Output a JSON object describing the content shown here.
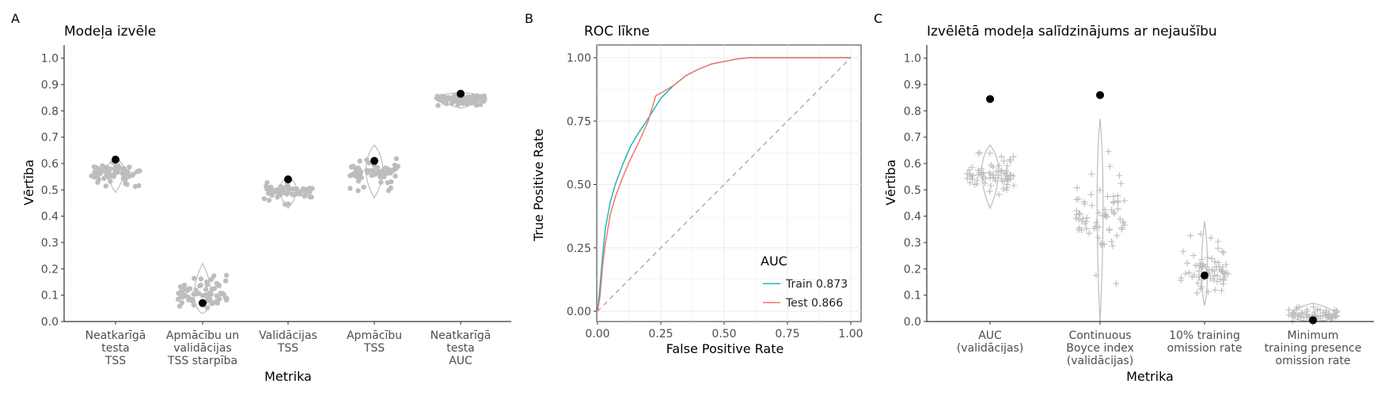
{
  "chart_data": [
    {
      "panel_letter": "A",
      "type": "scatter",
      "title": "Modeļa izvēle",
      "xlabel": "Metrika",
      "ylabel": "Vērtība",
      "ylim": [
        0,
        1.05
      ],
      "yticks": [
        "0.0",
        "0.1",
        "0.2",
        "0.3",
        "0.4",
        "0.5",
        "0.6",
        "0.7",
        "0.8",
        "0.9",
        "1.0"
      ],
      "categories": [
        [
          "Neatkarīgā",
          "testa",
          "TSS"
        ],
        [
          "Apmācību un",
          "validācijas",
          "TSS starpība"
        ],
        [
          "Validācijas",
          "TSS"
        ],
        [
          "Apmācību",
          "TSS"
        ],
        [
          "Neatkarīgā",
          "testa",
          "AUC"
        ]
      ],
      "selected_values": [
        0.615,
        0.07,
        0.54,
        0.61,
        0.865
      ],
      "point_distributions": [
        {
          "median": 0.58,
          "min": 0.49,
          "max": 0.62
        },
        {
          "median": 0.06,
          "min": 0.03,
          "max": 0.22
        },
        {
          "median": 0.5,
          "min": 0.43,
          "max": 0.55
        },
        {
          "median": 0.57,
          "min": 0.47,
          "max": 0.67
        },
        {
          "median": 0.855,
          "min": 0.81,
          "max": 0.87
        }
      ],
      "grid": false
    },
    {
      "panel_letter": "B",
      "type": "line",
      "title": "ROC līkne",
      "xlabel": "False Positive Rate",
      "ylabel": "True Positive Rate",
      "xlim": [
        0,
        1
      ],
      "ylim": [
        0,
        1
      ],
      "xticks": [
        "0.00",
        "0.25",
        "0.50",
        "0.75",
        "1.00"
      ],
      "yticks": [
        "0.00",
        "0.25",
        "0.50",
        "0.75",
        "1.00"
      ],
      "legend_title": "AUC",
      "legend_position": "bottom-right",
      "grid": true,
      "series": [
        {
          "name": "Train 0.873",
          "color": "#1fb7b7",
          "x": [
            0,
            0.01,
            0.02,
            0.03,
            0.05,
            0.07,
            0.1,
            0.13,
            0.16,
            0.2,
            0.25,
            0.3,
            0.35,
            0.4,
            0.45,
            0.5,
            0.55,
            0.6,
            0.7,
            0.8,
            0.9,
            1.0
          ],
          "y": [
            0,
            0.1,
            0.22,
            0.32,
            0.43,
            0.5,
            0.58,
            0.65,
            0.7,
            0.76,
            0.84,
            0.89,
            0.93,
            0.955,
            0.975,
            0.985,
            0.995,
            1.0,
            1.0,
            1.0,
            1.0,
            1.0
          ]
        },
        {
          "name": "Test 0.866",
          "color": "#f4756b",
          "x": [
            0,
            0.01,
            0.02,
            0.03,
            0.05,
            0.07,
            0.1,
            0.13,
            0.16,
            0.2,
            0.23,
            0.25,
            0.3,
            0.35,
            0.4,
            0.45,
            0.5,
            0.55,
            0.6,
            0.7,
            0.8,
            0.9,
            1.0
          ],
          "y": [
            0,
            0.06,
            0.18,
            0.26,
            0.38,
            0.45,
            0.53,
            0.6,
            0.66,
            0.75,
            0.85,
            0.86,
            0.89,
            0.93,
            0.955,
            0.975,
            0.985,
            0.995,
            1.0,
            1.0,
            1.0,
            1.0,
            1.0
          ]
        }
      ],
      "reference_line": {
        "x": [
          0,
          1
        ],
        "y": [
          0,
          1
        ],
        "style": "dashed",
        "color": "#aaaaaa"
      }
    },
    {
      "panel_letter": "C",
      "type": "scatter",
      "title": "Izvēlētā modeļa salīdzinājums ar nejaušību",
      "xlabel": "Metrika",
      "ylabel": "Vērtība",
      "ylim": [
        0,
        1.05
      ],
      "yticks": [
        "0.0",
        "0.1",
        "0.2",
        "0.3",
        "0.4",
        "0.5",
        "0.6",
        "0.7",
        "0.8",
        "0.9",
        "1.0"
      ],
      "categories": [
        [
          "AUC",
          "(validācijas)"
        ],
        [
          "Continuous",
          "Boyce index",
          "(validācijas)"
        ],
        [
          "10% training",
          "omission rate"
        ],
        [
          "Minimum",
          "training presence",
          "omission rate"
        ]
      ],
      "selected_values": [
        0.845,
        0.86,
        0.175,
        0.005
      ],
      "point_distributions": [
        {
          "median": 0.57,
          "min": 0.43,
          "max": 0.67
        },
        {
          "median": 0.45,
          "min": 0.0,
          "max": 0.77
        },
        {
          "median": 0.16,
          "min": 0.06,
          "max": 0.38
        },
        {
          "median": 0.01,
          "min": 0.0,
          "max": 0.07
        }
      ],
      "grid": false
    }
  ]
}
